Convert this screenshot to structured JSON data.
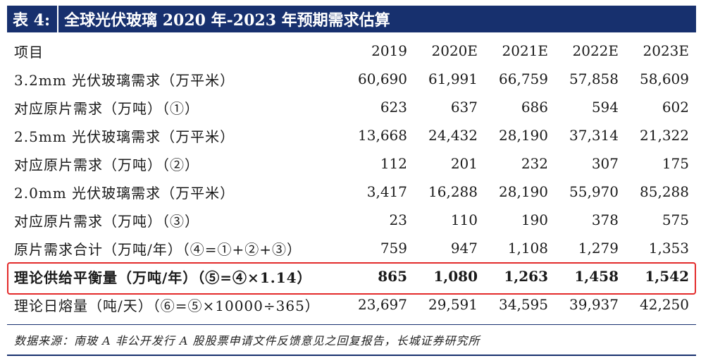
{
  "title": {
    "label": "表 4:",
    "text": "全球光伏玻璃 2020 年-2023 年预期需求估算"
  },
  "table": {
    "headers": [
      "项目",
      "2019",
      "2020E",
      "2021E",
      "2022E",
      "2023E"
    ],
    "rows": [
      {
        "label": "3.2mm 光伏玻璃需求（万平米）",
        "values": [
          "60,690",
          "61,991",
          "66,759",
          "57,858",
          "58,609"
        ]
      },
      {
        "label": "对应原片需求（万吨）（①）",
        "values": [
          "623",
          "637",
          "686",
          "594",
          "602"
        ]
      },
      {
        "label": "2.5mm 光伏玻璃需求（万平米）",
        "values": [
          "13,668",
          "24,432",
          "28,190",
          "37,314",
          "21,322"
        ]
      },
      {
        "label": "对应原片需求（万吨）（②）",
        "values": [
          "112",
          "201",
          "232",
          "307",
          "175"
        ]
      },
      {
        "label": "2.0mm 光伏玻璃需求（万平米）",
        "values": [
          "3,417",
          "16,288",
          "28,190",
          "55,970",
          "85,288"
        ]
      },
      {
        "label": "对应原片需求（万吨）（③）",
        "values": [
          "23",
          "110",
          "190",
          "378",
          "575"
        ]
      },
      {
        "label": "原片需求合计（万吨/年）（④=①+②+③）",
        "values": [
          "759",
          "947",
          "1,108",
          "1,279",
          "1,353"
        ]
      },
      {
        "label": "理论供给平衡量（万吨/年）（⑤=④×1.14）",
        "values": [
          "865",
          "1,080",
          "1,263",
          "1,458",
          "1,542"
        ]
      },
      {
        "label": "理论日熔量（吨/天）（⑥=⑤×10000÷365）",
        "values": [
          "23,697",
          "29,591",
          "34,595",
          "39,937",
          "42,250"
        ]
      }
    ]
  },
  "source": "数据来源：南玻 A 非公开发行 A 股股票申请文件反馈意见之回复报告，长城证券研究所",
  "colors": {
    "title_bg": "#17306e",
    "highlight_border": "#e32b2b"
  }
}
